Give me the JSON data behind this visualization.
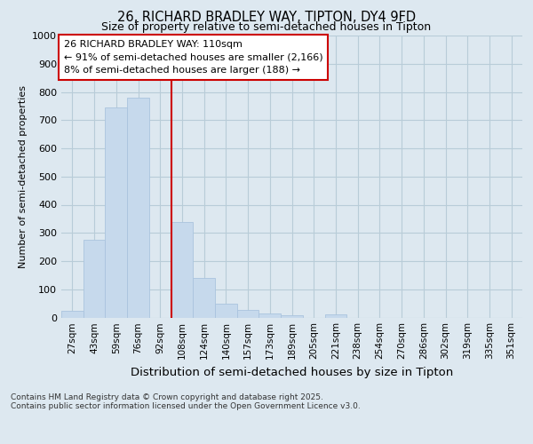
{
  "title_line1": "26, RICHARD BRADLEY WAY, TIPTON, DY4 9FD",
  "title_line2": "Size of property relative to semi-detached houses in Tipton",
  "xlabel": "Distribution of semi-detached houses by size in Tipton",
  "ylabel": "Number of semi-detached properties",
  "categories": [
    "27sqm",
    "43sqm",
    "59sqm",
    "76sqm",
    "92sqm",
    "108sqm",
    "124sqm",
    "140sqm",
    "157sqm",
    "173sqm",
    "189sqm",
    "205sqm",
    "221sqm",
    "238sqm",
    "254sqm",
    "270sqm",
    "286sqm",
    "302sqm",
    "319sqm",
    "335sqm",
    "351sqm"
  ],
  "values": [
    25,
    275,
    745,
    780,
    0,
    340,
    140,
    50,
    28,
    15,
    8,
    0,
    10,
    0,
    0,
    0,
    0,
    0,
    0,
    0,
    0
  ],
  "bar_color": "#c6d9ec",
  "bar_edgecolor": "#aac4de",
  "highlight_index": 5,
  "highlight_line_color": "#cc0000",
  "ylim": [
    0,
    1000
  ],
  "yticks": [
    0,
    100,
    200,
    300,
    400,
    500,
    600,
    700,
    800,
    900,
    1000
  ],
  "annotation_text": "26 RICHARD BRADLEY WAY: 110sqm\n← 91% of semi-detached houses are smaller (2,166)\n8% of semi-detached houses are larger (188) →",
  "annotation_box_color": "#ffffff",
  "annotation_box_edgecolor": "#cc0000",
  "footer_line1": "Contains HM Land Registry data © Crown copyright and database right 2025.",
  "footer_line2": "Contains public sector information licensed under the Open Government Licence v3.0.",
  "background_color": "#dde8f0",
  "plot_background_color": "#dde8f0",
  "grid_color": "#b8ccd8"
}
